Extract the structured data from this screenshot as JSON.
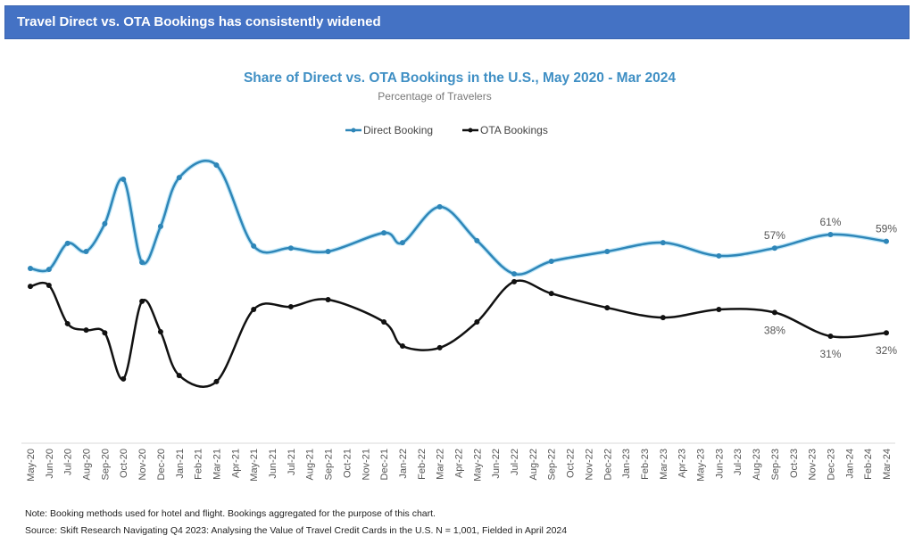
{
  "banner": {
    "title": "Travel Direct vs. OTA Bookings has consistently widened",
    "color": "#4472c4"
  },
  "chart_data": {
    "type": "line",
    "title": "Share of Direct vs. OTA Bookings in the U.S., May 2020 - Mar 2024",
    "subtitle": "Percentage of Travelers",
    "xlabel": "",
    "ylabel": "",
    "ylim": [
      10,
      90
    ],
    "grid": false,
    "legend_placement": "top-center",
    "categories": [
      "May-20",
      "Jun-20",
      "Jul-20",
      "Aug-20",
      "Sep-20",
      "Oct-20",
      "Nov-20",
      "Dec-20",
      "Jan-21",
      "Feb-21",
      "Mar-21",
      "Apr-21",
      "May-21",
      "Jun-21",
      "Jul-21",
      "Aug-21",
      "Sep-21",
      "Oct-21",
      "Nov-21",
      "Dec-21",
      "Jan-22",
      "Feb-22",
      "Mar-22",
      "Apr-22",
      "May-22",
      "Jun-22",
      "Jul-22",
      "Aug-22",
      "Sep-22",
      "Oct-22",
      "Nov-22",
      "Dec-22",
      "Jan-23",
      "Feb-23",
      "Mar-23",
      "Apr-23",
      "May-23",
      "Jun-23",
      "Jul-23",
      "Aug-23",
      "Sep-23",
      "Oct-23",
      "Nov-23",
      "Dec-23",
      "Jan-24",
      "Feb-24",
      "Mar-24"
    ],
    "series": [
      {
        "name": "Direct Booking",
        "color": "#2e86b8",
        "values": [
          51,
          50.7,
          58.4,
          56,
          64.2,
          77.3,
          52.8,
          63.4,
          77.8,
          null,
          81.5,
          null,
          57.6,
          null,
          57,
          null,
          56,
          null,
          null,
          61.5,
          58.6,
          null,
          69.2,
          null,
          59.2,
          null,
          49.4,
          null,
          53.1,
          null,
          null,
          56,
          null,
          null,
          58.6,
          null,
          null,
          54.7,
          null,
          null,
          57,
          null,
          null,
          61,
          null,
          null,
          59
        ]
      },
      {
        "name": "OTA Bookings",
        "color": "#111111",
        "values": [
          45.7,
          46,
          34.7,
          32.8,
          32,
          18.4,
          41.3,
          32.3,
          19.4,
          null,
          17.6,
          null,
          38.9,
          null,
          39.7,
          null,
          41.8,
          null,
          null,
          35.2,
          28.1,
          null,
          27.6,
          null,
          35.2,
          null,
          47.1,
          null,
          43.6,
          null,
          null,
          39.4,
          null,
          null,
          36.5,
          null,
          null,
          38.9,
          null,
          null,
          38,
          null,
          null,
          31,
          null,
          null,
          32
        ]
      }
    ],
    "data_labels": [
      {
        "series": "Direct Booking",
        "category": "Sep-23",
        "text": "57%",
        "pos": "above"
      },
      {
        "series": "Direct Booking",
        "category": "Dec-23",
        "text": "61%",
        "pos": "above"
      },
      {
        "series": "Direct Booking",
        "category": "Mar-24",
        "text": "59%",
        "pos": "above"
      },
      {
        "series": "OTA Bookings",
        "category": "Sep-23",
        "text": "38%",
        "pos": "below"
      },
      {
        "series": "OTA Bookings",
        "category": "Dec-23",
        "text": "31%",
        "pos": "below"
      },
      {
        "series": "OTA Bookings",
        "category": "Mar-24",
        "text": "32%",
        "pos": "below"
      }
    ]
  },
  "notes": {
    "note": "Note: Booking methods used for hotel and flight. Bookings aggregated for the purpose of this chart.",
    "source": "Source: Skift Research Navigating Q4 2023: Analysing the Value of Travel Credit Cards in the U.S. N = 1,001, Fielded in April 2024"
  }
}
